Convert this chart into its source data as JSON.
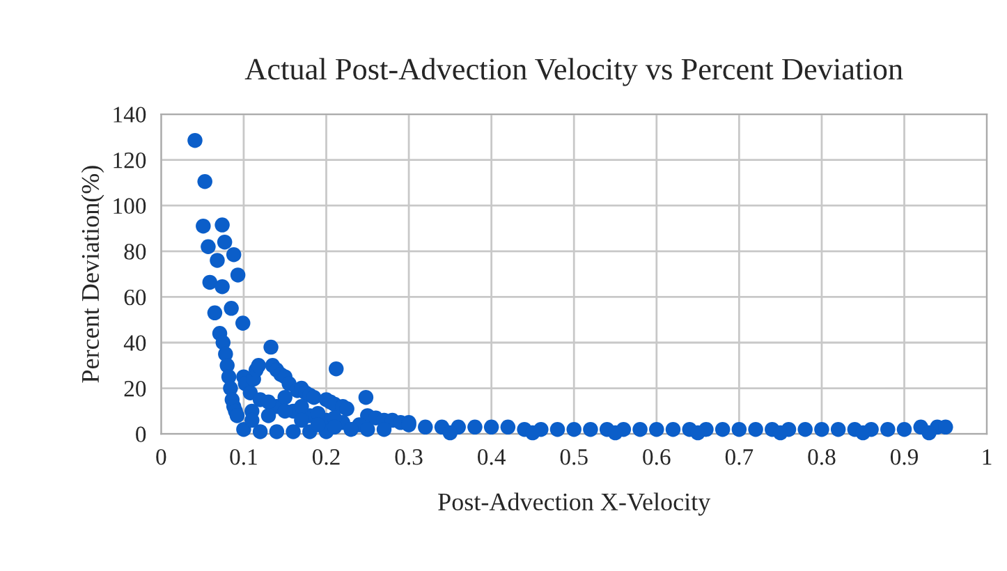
{
  "chart_data": {
    "type": "scatter",
    "title": "Actual Post-Advection Velocity vs Percent Deviation",
    "xlabel": "Post-Advection X-Velocity",
    "ylabel": "Percent Deviation(%)",
    "xlim": [
      0,
      1
    ],
    "ylim": [
      0,
      140
    ],
    "xticks": [
      0,
      0.1,
      0.2,
      0.3,
      0.4,
      0.5,
      0.6,
      0.7,
      0.8,
      0.9,
      1
    ],
    "yticks": [
      0,
      20,
      40,
      60,
      80,
      100,
      120,
      140
    ],
    "grid": true,
    "marker": "circle",
    "series": [
      {
        "color": "#0b5ec9",
        "x": [
          0.041,
          0.053,
          0.051,
          0.074,
          0.057,
          0.077,
          0.068,
          0.088,
          0.059,
          0.074,
          0.093,
          0.065,
          0.085,
          0.099,
          0.071,
          0.133,
          0.212,
          0.248,
          0.075,
          0.078,
          0.08,
          0.082,
          0.084,
          0.086,
          0.088,
          0.09,
          0.092,
          0.1,
          0.102,
          0.108,
          0.112,
          0.115,
          0.118,
          0.135,
          0.14,
          0.145,
          0.15,
          0.155,
          0.165,
          0.17,
          0.175,
          0.18,
          0.185,
          0.2,
          0.205,
          0.21,
          0.22,
          0.225,
          0.25,
          0.26,
          0.27,
          0.28,
          0.29,
          0.3,
          0.12,
          0.14,
          0.16,
          0.18,
          0.2,
          0.22,
          0.24,
          0.11,
          0.13,
          0.15,
          0.17,
          0.19,
          0.21,
          0.1,
          0.12,
          0.14,
          0.16,
          0.18,
          0.2,
          0.11,
          0.13,
          0.15,
          0.17,
          0.19,
          0.21,
          0.23,
          0.25,
          0.27,
          0.3,
          0.32,
          0.34,
          0.36,
          0.38,
          0.4,
          0.42,
          0.44,
          0.46,
          0.48,
          0.5,
          0.52,
          0.54,
          0.56,
          0.58,
          0.6,
          0.62,
          0.64,
          0.66,
          0.68,
          0.7,
          0.72,
          0.74,
          0.76,
          0.78,
          0.8,
          0.82,
          0.84,
          0.86,
          0.88,
          0.9,
          0.92,
          0.94,
          0.95,
          0.35,
          0.45,
          0.55,
          0.65,
          0.75,
          0.85,
          0.93
        ],
        "values": [
          128.5,
          110.5,
          91,
          91.5,
          82,
          84,
          76,
          78.5,
          66.4,
          64.5,
          69.6,
          53,
          55,
          48.5,
          44,
          38,
          28.5,
          16,
          40,
          35,
          30,
          25,
          20,
          15,
          12,
          10,
          8,
          25,
          22,
          18,
          24,
          28,
          30,
          30,
          28,
          26,
          25,
          22,
          19,
          20,
          18,
          17,
          16,
          15,
          14,
          13,
          12,
          11,
          8,
          7,
          6,
          6,
          5,
          5,
          15,
          12,
          10,
          8,
          6,
          5,
          4,
          10,
          14,
          16,
          12,
          9,
          7,
          2,
          1,
          1,
          1,
          1,
          1,
          6,
          8,
          10,
          6,
          4,
          3,
          2,
          2,
          2,
          4,
          3,
          3,
          3,
          3,
          3,
          3,
          2,
          2,
          2,
          2,
          2,
          2,
          2,
          2,
          2,
          2,
          2,
          2,
          2,
          2,
          2,
          2,
          2,
          2,
          2,
          2,
          2,
          2,
          2,
          2,
          3,
          3,
          3,
          0.5,
          0.5,
          0.5,
          0.5,
          0.5,
          0.5,
          0.5
        ]
      }
    ]
  }
}
